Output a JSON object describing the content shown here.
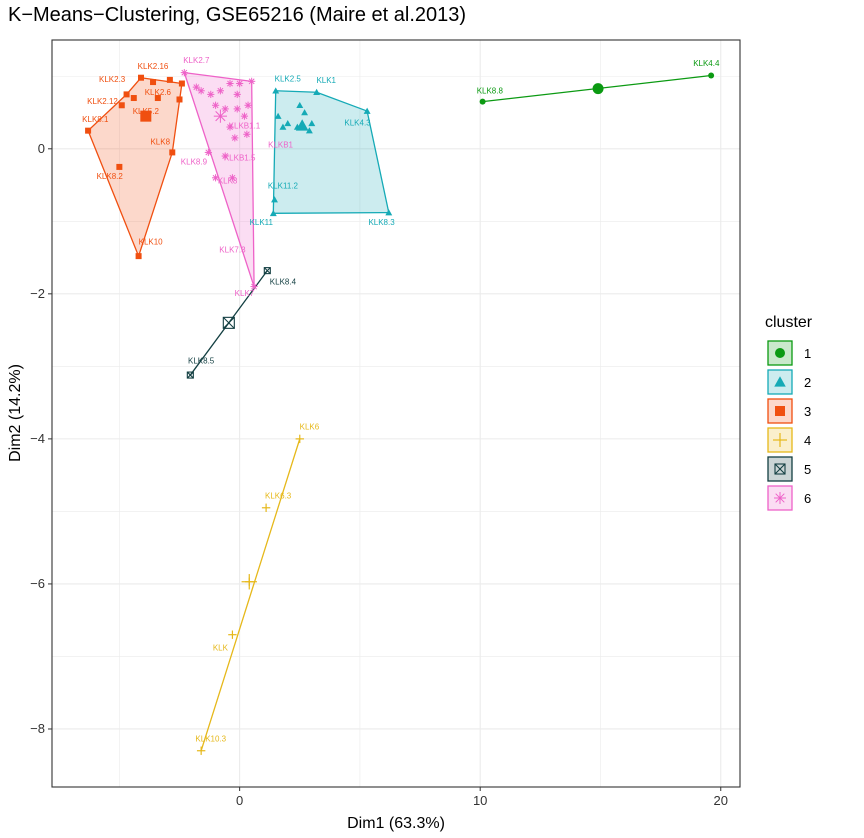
{
  "chart_data": {
    "type": "scatter",
    "title": "K−Means−Clustering, GSE65216 (Maire et al.2013)",
    "xlabel": "Dim1 (63.3%)",
    "ylabel": "Dim2 (14.2%)",
    "xlim": [
      -7.8,
      20.8
    ],
    "ylim": [
      -8.8,
      1.5
    ],
    "xticks": [
      0,
      10,
      20
    ],
    "yticks": [
      0,
      -2,
      -4,
      -6,
      -8
    ],
    "xtick_labels": [
      "0",
      "10",
      "20"
    ],
    "ytick_labels": [
      "0",
      "−2",
      "−4",
      "−6",
      "−8"
    ],
    "grid": true,
    "legend": {
      "title": "cluster",
      "position": "right",
      "entries": [
        "1",
        "2",
        "3",
        "4",
        "5",
        "6"
      ]
    },
    "colors": {
      "1": "#0b9a12",
      "2": "#15aab6",
      "3": "#f04f10",
      "4": "#e6b81a",
      "5": "#133f42",
      "6": "#ee62c8"
    },
    "series": [
      {
        "cluster": "1",
        "shape": "circle",
        "hull": [
          [
            10.1,
            0.65
          ],
          [
            19.6,
            1.01
          ]
        ],
        "centroid": [
          14.9,
          0.83
        ],
        "points": [
          [
            10.1,
            0.65
          ],
          [
            19.6,
            1.01
          ]
        ],
        "labels": [
          {
            "text": "KLK8.8",
            "x": 10.4,
            "y": 0.76
          },
          {
            "text": "KLK4.4",
            "x": 19.4,
            "y": 1.14
          }
        ]
      },
      {
        "cluster": "2",
        "shape": "triangle",
        "hull": [
          [
            1.5,
            0.8
          ],
          [
            3.2,
            0.78
          ],
          [
            5.3,
            0.52
          ],
          [
            6.2,
            -0.88
          ],
          [
            1.4,
            -0.89
          ]
        ],
        "centroid": [
          2.6,
          0.32
        ],
        "points": [
          [
            1.5,
            0.8
          ],
          [
            3.2,
            0.78
          ],
          [
            5.3,
            0.52
          ],
          [
            6.2,
            -0.88
          ],
          [
            1.4,
            -0.89
          ],
          [
            1.45,
            -0.7
          ],
          [
            1.6,
            0.45
          ],
          [
            2.0,
            0.35
          ],
          [
            2.5,
            0.6
          ],
          [
            2.7,
            0.5
          ],
          [
            2.9,
            0.25
          ],
          [
            2.4,
            0.3
          ],
          [
            1.8,
            0.3
          ],
          [
            3.0,
            0.35
          ]
        ],
        "labels": [
          {
            "text": "KLK2.5",
            "x": 2.0,
            "y": 0.93
          },
          {
            "text": "KLK1",
            "x": 3.6,
            "y": 0.91
          },
          {
            "text": "KLK4.3",
            "x": 4.9,
            "y": 0.32
          },
          {
            "text": "KLK11.2",
            "x": 1.8,
            "y": -0.55
          },
          {
            "text": "KLK11",
            "x": 0.9,
            "y": -1.05
          },
          {
            "text": "KLK8.3",
            "x": 5.9,
            "y": -1.05
          }
        ]
      },
      {
        "cluster": "3",
        "shape": "square",
        "hull": [
          [
            -6.3,
            0.25
          ],
          [
            -4.7,
            0.75
          ],
          [
            -4.1,
            0.98
          ],
          [
            -2.4,
            0.9
          ],
          [
            -2.8,
            -0.05
          ],
          [
            -4.2,
            -1.48
          ]
        ],
        "centroid": [
          -3.9,
          0.45
        ],
        "points": [
          [
            -6.3,
            0.25
          ],
          [
            -4.7,
            0.75
          ],
          [
            -4.1,
            0.98
          ],
          [
            -2.4,
            0.9
          ],
          [
            -2.8,
            -0.05
          ],
          [
            -4.2,
            -1.48
          ],
          [
            -5.0,
            -0.25
          ],
          [
            -4.4,
            0.7
          ],
          [
            -3.6,
            0.92
          ],
          [
            -3.4,
            0.7
          ],
          [
            -2.9,
            0.95
          ],
          [
            -2.5,
            0.68
          ],
          [
            -4.9,
            0.6
          ]
        ],
        "labels": [
          {
            "text": "KLK2.3",
            "x": -5.3,
            "y": 0.92
          },
          {
            "text": "KLK2.16",
            "x": -3.6,
            "y": 1.1
          },
          {
            "text": "KLK2.12",
            "x": -5.7,
            "y": 0.62
          },
          {
            "text": "KLK2.6",
            "x": -3.4,
            "y": 0.74
          },
          {
            "text": "KLK5.2",
            "x": -3.9,
            "y": 0.48
          },
          {
            "text": "KLK8.1",
            "x": -6.0,
            "y": 0.37
          },
          {
            "text": "KLK8",
            "x": -3.3,
            "y": 0.06
          },
          {
            "text": "KLK8.2",
            "x": -5.4,
            "y": -0.42
          },
          {
            "text": "KLK10",
            "x": -3.7,
            "y": -1.32
          }
        ]
      },
      {
        "cluster": "4",
        "shape": "plus",
        "hull": [
          [
            2.5,
            -4.0
          ],
          [
            -1.6,
            -8.3
          ]
        ],
        "centroid": [
          0.4,
          -5.97
        ],
        "points": [
          [
            2.5,
            -4.0
          ],
          [
            1.1,
            -4.95
          ],
          [
            0.4,
            -5.97
          ],
          [
            -0.3,
            -6.7
          ],
          [
            -1.6,
            -8.3
          ]
        ],
        "labels": [
          {
            "text": "KLK6",
            "x": 2.9,
            "y": -3.87
          },
          {
            "text": "KLK6.3",
            "x": 1.6,
            "y": -4.82
          },
          {
            "text": "KLK",
            "x": -0.8,
            "y": -6.92
          },
          {
            "text": "KLK10.3",
            "x": -1.2,
            "y": -8.17
          }
        ]
      },
      {
        "cluster": "5",
        "shape": "boxcross",
        "hull": [
          [
            1.15,
            -1.68
          ],
          [
            -2.05,
            -3.12
          ]
        ],
        "centroid": [
          -0.45,
          -2.4
        ],
        "points": [
          [
            1.15,
            -1.68
          ],
          [
            -2.05,
            -3.12
          ]
        ],
        "labels": [
          {
            "text": "KLK8.4",
            "x": 1.8,
            "y": -1.87
          },
          {
            "text": "KLK8.5",
            "x": -1.6,
            "y": -2.96
          }
        ]
      },
      {
        "cluster": "6",
        "shape": "star",
        "hull": [
          [
            -2.3,
            1.05
          ],
          [
            0.5,
            0.93
          ],
          [
            0.6,
            -1.9
          ]
        ],
        "centroid": [
          -0.8,
          0.45
        ],
        "points": [
          [
            -2.3,
            1.05
          ],
          [
            0.5,
            0.93
          ],
          [
            0.6,
            -1.9
          ],
          [
            -1.6,
            0.8
          ],
          [
            -1.2,
            0.75
          ],
          [
            -0.8,
            0.8
          ],
          [
            -0.4,
            0.9
          ],
          [
            0.0,
            0.9
          ],
          [
            -1.0,
            0.6
          ],
          [
            -0.6,
            0.55
          ],
          [
            -0.1,
            0.55
          ],
          [
            0.2,
            0.45
          ],
          [
            -0.4,
            0.3
          ],
          [
            0.3,
            0.2
          ],
          [
            -0.2,
            0.15
          ],
          [
            -1.3,
            -0.05
          ],
          [
            -1.0,
            -0.4
          ],
          [
            -0.6,
            -0.1
          ],
          [
            -0.3,
            -0.4
          ],
          [
            0.35,
            0.6
          ],
          [
            -1.8,
            0.85
          ],
          [
            -0.1,
            0.75
          ]
        ],
        "labels": [
          {
            "text": "KLK2.7",
            "x": -1.8,
            "y": 1.18
          },
          {
            "text": "KLKB1.1",
            "x": 0.2,
            "y": 0.28
          },
          {
            "text": "KLKB1",
            "x": 1.7,
            "y": 0.02
          },
          {
            "text": "KLKB1.5",
            "x": 0.0,
            "y": -0.16
          },
          {
            "text": "KLK8.9",
            "x": -1.9,
            "y": -0.22
          },
          {
            "text": "KLK8",
            "x": -0.5,
            "y": -0.48
          },
          {
            "text": "KLK7.3",
            "x": -0.3,
            "y": -1.43
          },
          {
            "text": "KLK7",
            "x": 0.2,
            "y": -2.03
          }
        ]
      }
    ]
  }
}
